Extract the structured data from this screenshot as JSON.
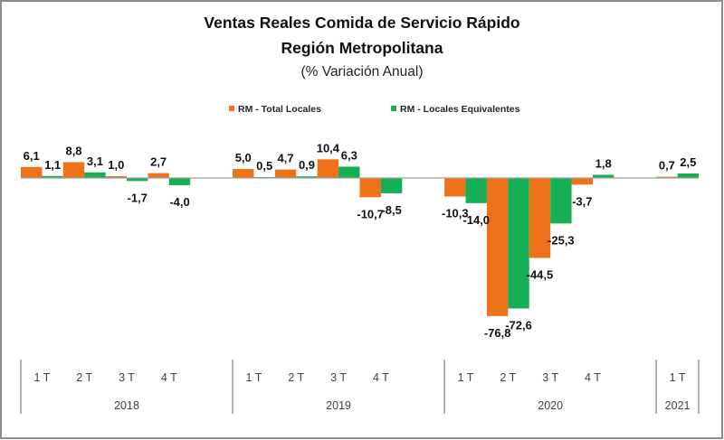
{
  "chart_data": {
    "type": "bar",
    "title": "Ventas Reales Comida de Servicio Rápido",
    "subtitle": "Región Metropolitana",
    "units_note": "(% Variación Anual)",
    "xlabel": "",
    "ylabel": "",
    "ylim": [
      -90,
      20
    ],
    "y_axis_visible": false,
    "grid": false,
    "legend_position": "top",
    "decimal_separator": ",",
    "groups": [
      {
        "label": "2018",
        "categories": [
          "1 T",
          "2 T",
          "3 T",
          "4 T"
        ]
      },
      {
        "label": "2019",
        "categories": [
          "1 T",
          "2 T",
          "3 T",
          "4 T"
        ]
      },
      {
        "label": "2020",
        "categories": [
          "1 T",
          "2 T",
          "3 T",
          "4 T"
        ]
      },
      {
        "label": "2021",
        "categories": [
          "1 T"
        ]
      }
    ],
    "categories": [
      "1T 2018",
      "2T 2018",
      "3T 2018",
      "4T 2018",
      "1T 2019",
      "2T 2019",
      "3T 2019",
      "4T 2019",
      "1T 2020",
      "2T 2020",
      "3T 2020",
      "4T 2020",
      "1T 2021"
    ],
    "series": [
      {
        "name": "RM - Total Locales",
        "color": "#EE7219",
        "values": [
          6.1,
          8.8,
          1.0,
          2.7,
          5.0,
          4.7,
          10.4,
          -10.7,
          -10.3,
          -76.8,
          -44.5,
          -3.7,
          0.7
        ],
        "labels": [
          "6,1",
          "8,8",
          "1,0",
          "2,7",
          "5,0",
          "4,7",
          "10,4",
          "-10,7",
          "-10,3",
          "-76,8",
          "-44,5",
          "-3,7",
          "0,7"
        ]
      },
      {
        "name": "RM - Locales Equivalentes",
        "color": "#16AF55",
        "values": [
          1.1,
          3.1,
          -1.7,
          -4.0,
          0.5,
          0.9,
          6.3,
          -8.5,
          -14.0,
          -72.6,
          -25.3,
          1.8,
          2.5
        ],
        "labels": [
          "1,1",
          "3,1",
          "-1,7",
          "-4,0",
          "0,5",
          "0,9",
          "6,3",
          "-8,5",
          "-14,0",
          "-72,6",
          "-25,3",
          "1,8",
          "2,5"
        ]
      }
    ],
    "colors": {
      "axis_line": "#A0A0A0",
      "frame_border": "#8C8C8C"
    }
  }
}
